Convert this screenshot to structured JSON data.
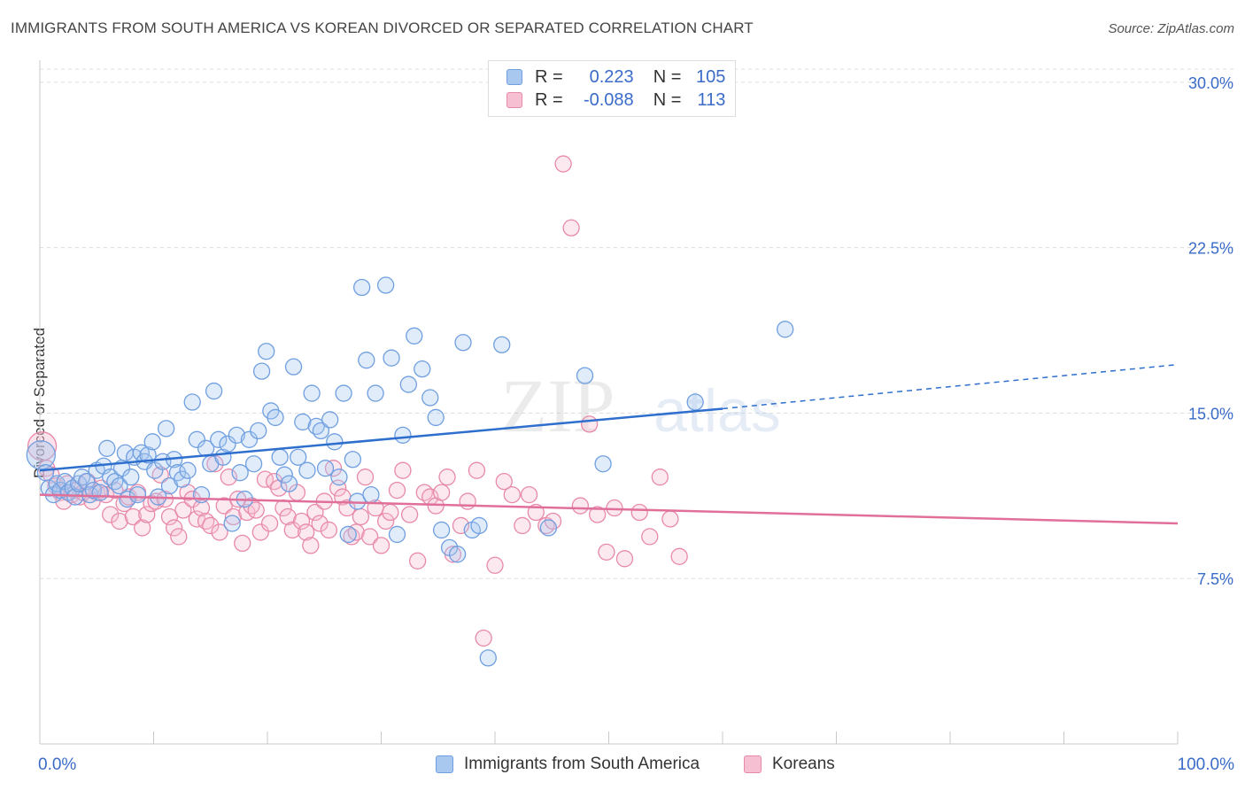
{
  "header": {
    "title": "IMMIGRANTS FROM SOUTH AMERICA VS KOREAN DIVORCED OR SEPARATED CORRELATION CHART",
    "source": "Source: ZipAtlas.com"
  },
  "watermark": {
    "zip": "ZIP",
    "atlas": "atlas"
  },
  "legend": {
    "rows": [
      {
        "r_label": "R =",
        "r_value": "0.223",
        "n_label": "N =",
        "n_value": "105",
        "color": "#a9c8f0",
        "border": "#6f9fe0"
      },
      {
        "r_label": "R =",
        "r_value": "-0.088",
        "n_label": "N =",
        "n_value": "113",
        "color": "#f7bfd2",
        "border": "#e889a9"
      }
    ]
  },
  "bottom_legend": {
    "items": [
      {
        "label": "Immigrants from South America",
        "color": "#a9c8f0",
        "border": "#6f9fe0"
      },
      {
        "label": "Koreans",
        "color": "#f7bfd2",
        "border": "#e889a9"
      }
    ]
  },
  "chart_data": {
    "type": "scatter",
    "title": "IMMIGRANTS FROM SOUTH AMERICA VS KOREAN DIVORCED OR SEPARATED CORRELATION CHART",
    "xlabel": "",
    "ylabel": "Divorced or Separated",
    "xlim": [
      0,
      100
    ],
    "ylim": [
      0,
      31
    ],
    "x_tick_labels": [
      "0.0%",
      "100.0%"
    ],
    "y_ticks": [
      7.5,
      15.0,
      22.5,
      30.0
    ],
    "y_tick_labels": [
      "7.5%",
      "15.0%",
      "22.5%",
      "30.0%"
    ],
    "grid": true,
    "legend_position": "top-center",
    "series": [
      {
        "name": "Immigrants from South America",
        "color": "#6f9fe0",
        "fill": "#a9c8f0",
        "line_color": "#2e6fce",
        "trend": {
          "x": [
            0,
            60
          ],
          "y": [
            12.4,
            15.2
          ],
          "dashed_x": [
            60,
            100
          ],
          "dashed_y": [
            15.2,
            17.2
          ]
        },
        "points": [
          [
            0.1,
            13.1
          ],
          [
            0.5,
            12.3
          ],
          [
            0.8,
            11.6
          ],
          [
            1.2,
            11.3
          ],
          [
            1.5,
            11.8
          ],
          [
            1.8,
            11.5
          ],
          [
            2.2,
            11.9
          ],
          [
            2.5,
            11.4
          ],
          [
            2.9,
            11.6
          ],
          [
            3.1,
            11.2
          ],
          [
            3.4,
            11.8
          ],
          [
            3.7,
            12.1
          ],
          [
            4.1,
            11.9
          ],
          [
            4.4,
            11.3
          ],
          [
            4.7,
            11.5
          ],
          [
            5.0,
            12.4
          ],
          [
            5.3,
            11.4
          ],
          [
            5.6,
            12.6
          ],
          [
            5.9,
            13.4
          ],
          [
            6.2,
            12.1
          ],
          [
            6.6,
            11.9
          ],
          [
            7.0,
            11.7
          ],
          [
            7.2,
            12.5
          ],
          [
            7.5,
            13.2
          ],
          [
            7.7,
            11.1
          ],
          [
            8.0,
            12.1
          ],
          [
            8.3,
            13.0
          ],
          [
            8.6,
            11.3
          ],
          [
            8.9,
            13.2
          ],
          [
            9.2,
            12.8
          ],
          [
            9.5,
            13.1
          ],
          [
            9.9,
            13.7
          ],
          [
            10.1,
            12.4
          ],
          [
            10.4,
            11.2
          ],
          [
            10.8,
            12.8
          ],
          [
            11.1,
            14.3
          ],
          [
            11.4,
            11.7
          ],
          [
            11.8,
            12.9
          ],
          [
            12.1,
            12.3
          ],
          [
            12.5,
            12.0
          ],
          [
            13.0,
            12.4
          ],
          [
            13.4,
            15.5
          ],
          [
            13.8,
            13.8
          ],
          [
            14.2,
            11.3
          ],
          [
            14.6,
            13.4
          ],
          [
            15.0,
            12.7
          ],
          [
            15.3,
            16.0
          ],
          [
            15.7,
            13.8
          ],
          [
            16.1,
            13.0
          ],
          [
            16.5,
            13.6
          ],
          [
            16.9,
            10.0
          ],
          [
            17.3,
            14.0
          ],
          [
            17.6,
            12.3
          ],
          [
            18.0,
            11.1
          ],
          [
            18.4,
            13.8
          ],
          [
            18.8,
            12.7
          ],
          [
            19.2,
            14.2
          ],
          [
            19.5,
            16.9
          ],
          [
            19.9,
            17.8
          ],
          [
            20.3,
            15.1
          ],
          [
            20.7,
            14.8
          ],
          [
            21.1,
            13.0
          ],
          [
            21.5,
            12.2
          ],
          [
            21.9,
            11.8
          ],
          [
            22.3,
            17.1
          ],
          [
            22.7,
            13.0
          ],
          [
            23.1,
            14.6
          ],
          [
            23.5,
            12.4
          ],
          [
            23.9,
            15.9
          ],
          [
            24.3,
            14.4
          ],
          [
            24.7,
            14.2
          ],
          [
            25.1,
            12.5
          ],
          [
            25.5,
            14.7
          ],
          [
            25.9,
            13.7
          ],
          [
            26.3,
            12.1
          ],
          [
            26.7,
            15.9
          ],
          [
            27.1,
            9.5
          ],
          [
            27.5,
            12.9
          ],
          [
            27.9,
            11.0
          ],
          [
            28.3,
            20.7
          ],
          [
            28.7,
            17.4
          ],
          [
            29.1,
            11.3
          ],
          [
            29.5,
            15.9
          ],
          [
            30.4,
            20.8
          ],
          [
            30.9,
            17.5
          ],
          [
            31.4,
            9.5
          ],
          [
            31.9,
            14.0
          ],
          [
            32.4,
            16.3
          ],
          [
            32.9,
            18.5
          ],
          [
            33.6,
            17.0
          ],
          [
            34.3,
            15.7
          ],
          [
            34.8,
            14.8
          ],
          [
            35.3,
            9.7
          ],
          [
            36.0,
            8.9
          ],
          [
            36.7,
            8.6
          ],
          [
            37.2,
            18.2
          ],
          [
            38.0,
            9.7
          ],
          [
            38.6,
            9.9
          ],
          [
            39.4,
            3.9
          ],
          [
            40.6,
            18.1
          ],
          [
            44.7,
            9.8
          ],
          [
            47.9,
            16.7
          ],
          [
            49.5,
            12.7
          ],
          [
            57.6,
            15.5
          ],
          [
            65.5,
            18.8
          ]
        ]
      },
      {
        "name": "Koreans",
        "color": "#e889a9",
        "fill": "#f7bfd2",
        "line_color": "#e0709a",
        "trend": {
          "x": [
            0,
            100
          ],
          "y": [
            11.3,
            10.0
          ]
        },
        "points": [
          [
            0.2,
            13.5
          ],
          [
            0.6,
            12.5
          ],
          [
            1.0,
            12.2
          ],
          [
            1.4,
            11.7
          ],
          [
            1.8,
            11.4
          ],
          [
            2.1,
            11.0
          ],
          [
            2.4,
            11.8
          ],
          [
            2.8,
            11.3
          ],
          [
            3.2,
            11.5
          ],
          [
            3.5,
            11.2
          ],
          [
            3.8,
            11.4
          ],
          [
            4.2,
            11.9
          ],
          [
            4.6,
            11.0
          ],
          [
            5.0,
            11.4
          ],
          [
            5.4,
            11.6
          ],
          [
            5.8,
            11.3
          ],
          [
            6.2,
            10.4
          ],
          [
            6.6,
            11.5
          ],
          [
            7.0,
            10.1
          ],
          [
            7.4,
            10.9
          ],
          [
            7.8,
            11.2
          ],
          [
            8.2,
            10.3
          ],
          [
            8.6,
            11.4
          ],
          [
            9.0,
            9.8
          ],
          [
            9.4,
            10.4
          ],
          [
            9.8,
            10.9
          ],
          [
            10.2,
            11.0
          ],
          [
            10.6,
            12.2
          ],
          [
            11.0,
            11.1
          ],
          [
            11.4,
            10.3
          ],
          [
            11.8,
            9.8
          ],
          [
            12.2,
            9.4
          ],
          [
            12.6,
            10.6
          ],
          [
            13.0,
            11.4
          ],
          [
            13.4,
            11.1
          ],
          [
            13.8,
            10.2
          ],
          [
            14.2,
            10.7
          ],
          [
            14.6,
            10.1
          ],
          [
            15.0,
            9.9
          ],
          [
            15.4,
            12.7
          ],
          [
            15.8,
            9.6
          ],
          [
            16.2,
            10.8
          ],
          [
            16.6,
            12.1
          ],
          [
            17.0,
            10.3
          ],
          [
            17.4,
            11.1
          ],
          [
            17.8,
            9.1
          ],
          [
            18.2,
            10.5
          ],
          [
            18.6,
            10.8
          ],
          [
            19.0,
            10.6
          ],
          [
            19.4,
            9.6
          ],
          [
            19.8,
            12.0
          ],
          [
            20.2,
            10.0
          ],
          [
            20.6,
            11.9
          ],
          [
            21.0,
            11.6
          ],
          [
            21.4,
            10.7
          ],
          [
            21.8,
            10.3
          ],
          [
            22.2,
            9.7
          ],
          [
            22.6,
            11.4
          ],
          [
            23.0,
            10.1
          ],
          [
            23.4,
            9.6
          ],
          [
            23.8,
            9.0
          ],
          [
            24.2,
            10.5
          ],
          [
            24.6,
            10.0
          ],
          [
            25.0,
            11.0
          ],
          [
            25.4,
            9.7
          ],
          [
            25.8,
            12.5
          ],
          [
            26.2,
            11.6
          ],
          [
            26.6,
            11.2
          ],
          [
            27.0,
            10.7
          ],
          [
            27.4,
            9.4
          ],
          [
            27.8,
            9.6
          ],
          [
            28.2,
            10.3
          ],
          [
            28.6,
            12.1
          ],
          [
            29.0,
            9.4
          ],
          [
            29.5,
            10.7
          ],
          [
            30.0,
            9.0
          ],
          [
            30.4,
            10.1
          ],
          [
            30.8,
            10.5
          ],
          [
            31.4,
            11.5
          ],
          [
            31.9,
            12.4
          ],
          [
            32.5,
            10.4
          ],
          [
            33.2,
            8.3
          ],
          [
            33.8,
            11.4
          ],
          [
            34.3,
            11.2
          ],
          [
            34.8,
            10.8
          ],
          [
            35.3,
            11.4
          ],
          [
            35.8,
            12.1
          ],
          [
            36.3,
            8.6
          ],
          [
            37.0,
            9.9
          ],
          [
            37.6,
            11.0
          ],
          [
            38.4,
            12.4
          ],
          [
            39.0,
            4.8
          ],
          [
            40.0,
            8.1
          ],
          [
            40.8,
            11.9
          ],
          [
            41.5,
            11.3
          ],
          [
            42.4,
            9.9
          ],
          [
            43.0,
            11.3
          ],
          [
            43.6,
            10.5
          ],
          [
            44.5,
            9.9
          ],
          [
            45.1,
            10.1
          ],
          [
            46.0,
            26.3
          ],
          [
            46.7,
            23.4
          ],
          [
            47.5,
            10.8
          ],
          [
            48.3,
            14.5
          ],
          [
            49.0,
            10.4
          ],
          [
            49.8,
            8.7
          ],
          [
            50.5,
            10.7
          ],
          [
            51.4,
            8.4
          ],
          [
            52.7,
            10.5
          ],
          [
            53.6,
            9.4
          ],
          [
            54.5,
            12.1
          ],
          [
            55.4,
            10.2
          ],
          [
            56.2,
            8.5
          ]
        ]
      }
    ]
  }
}
